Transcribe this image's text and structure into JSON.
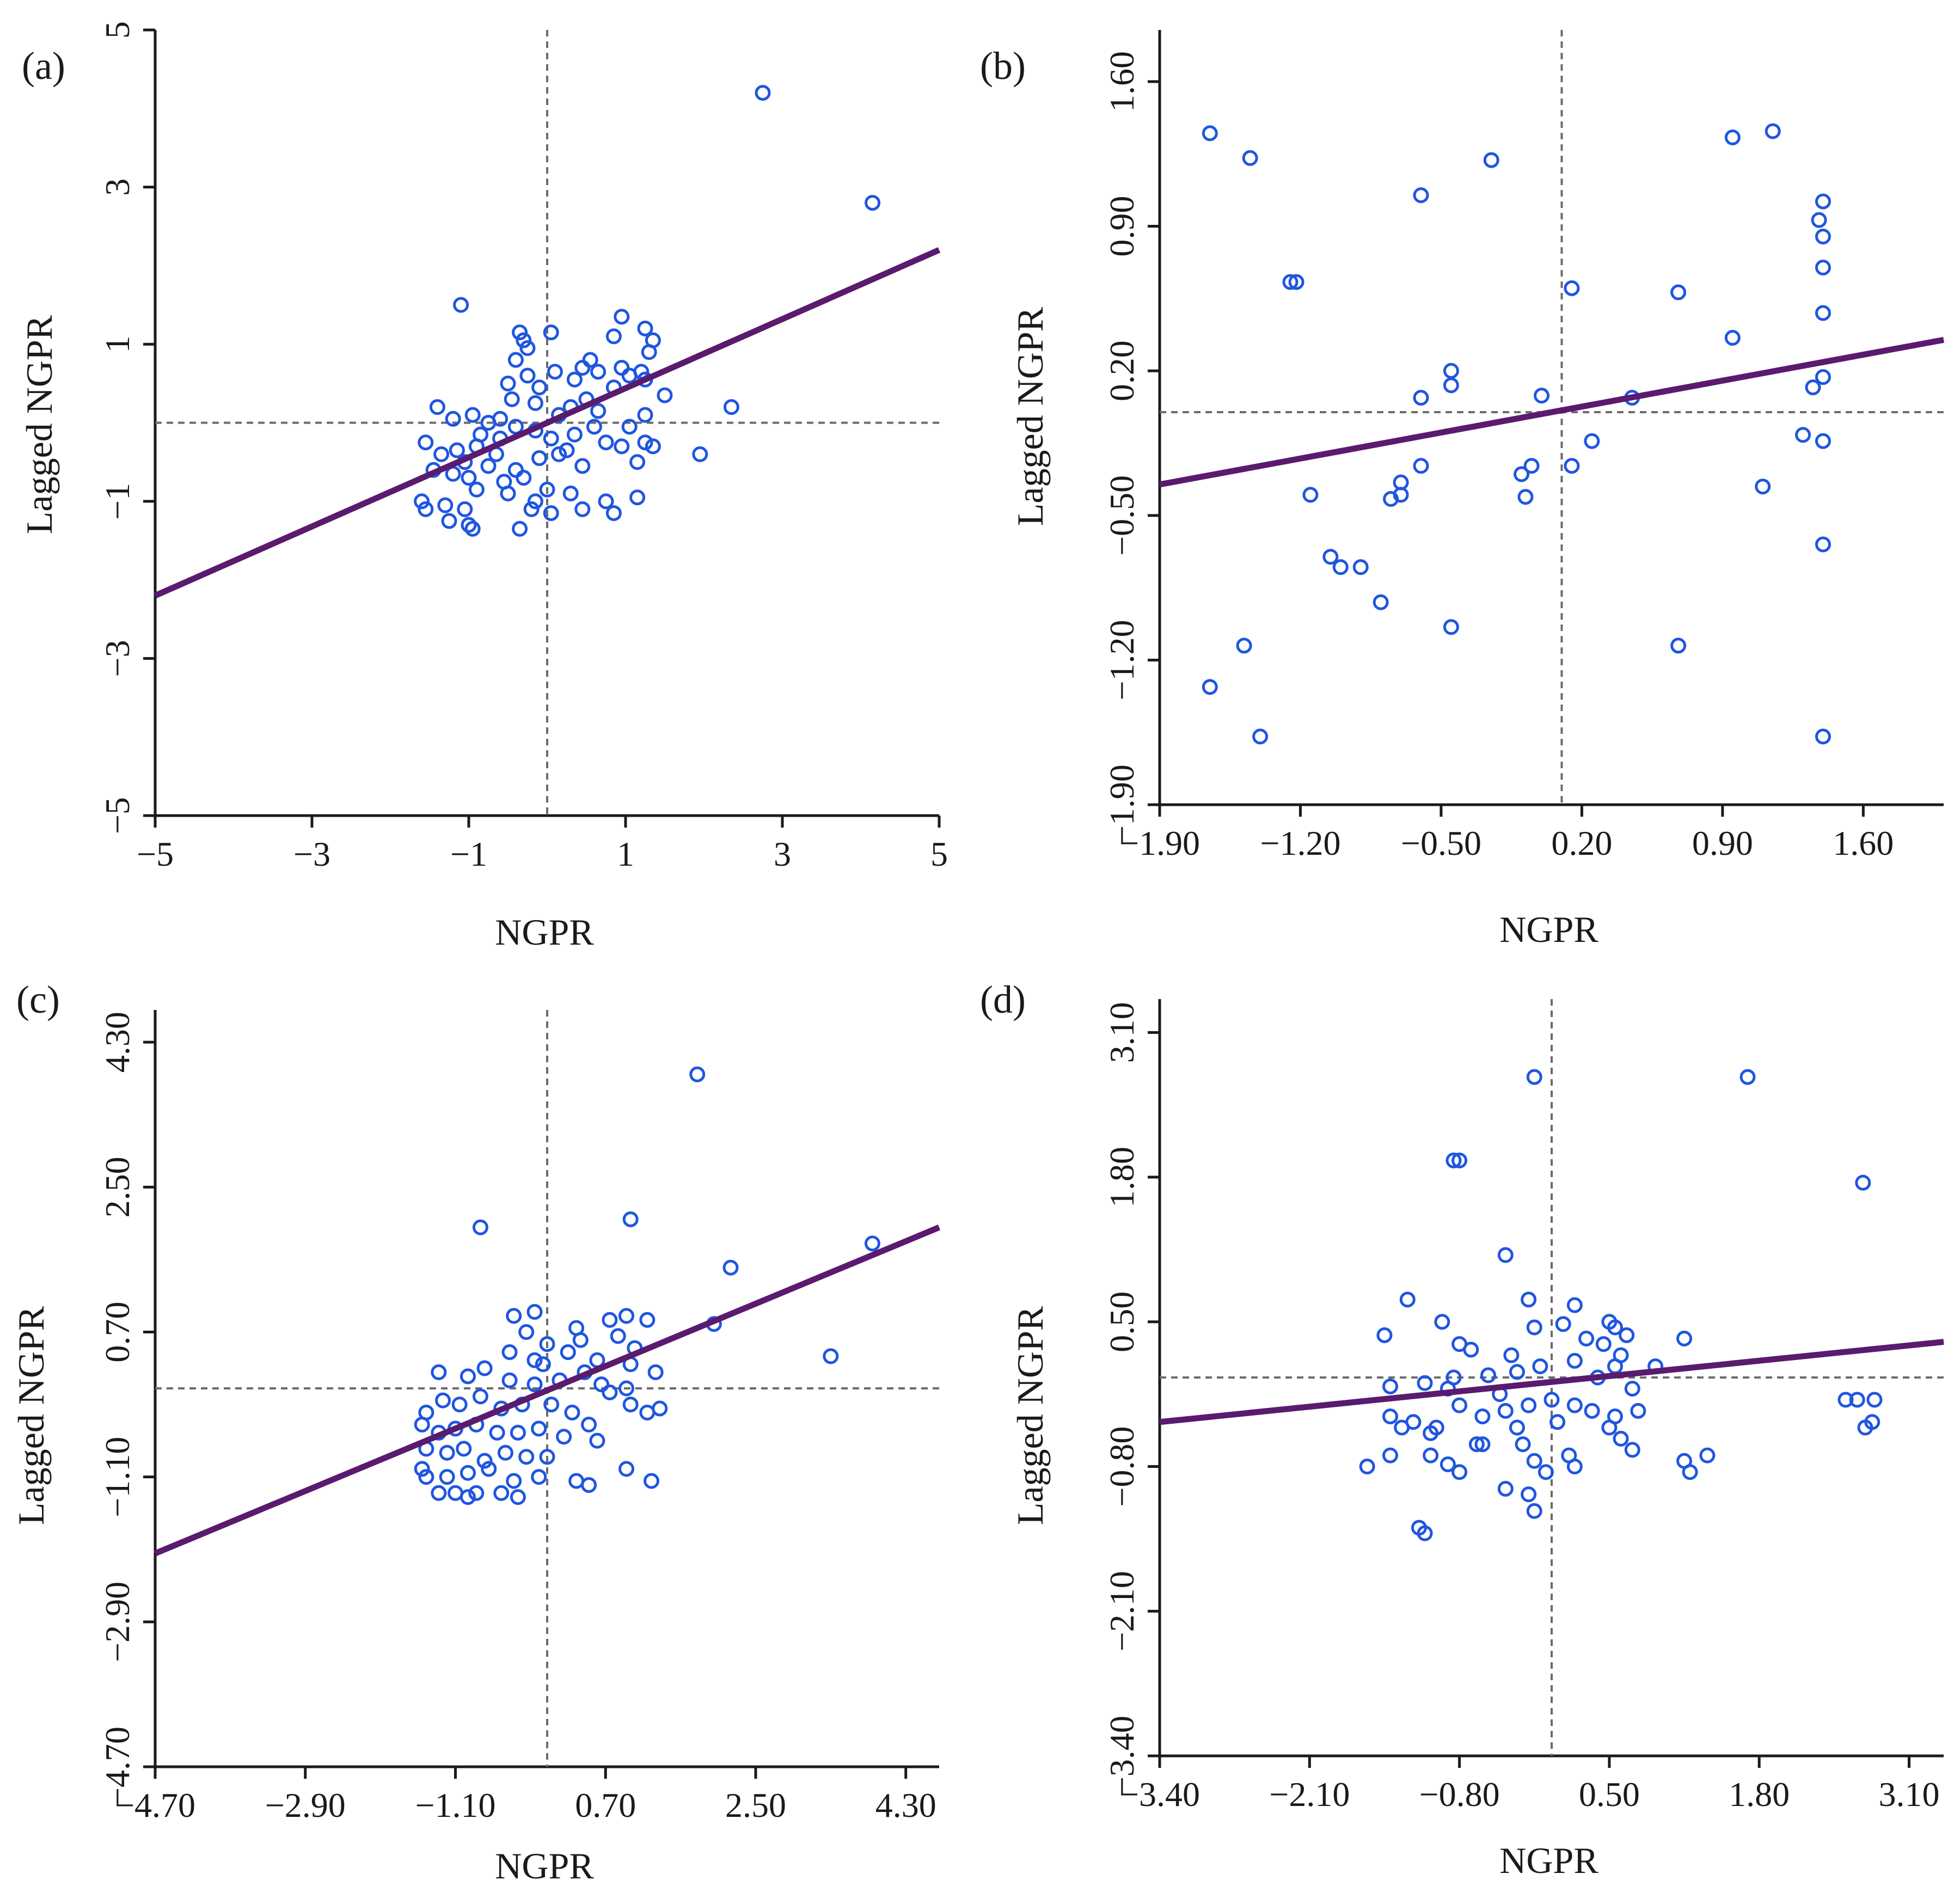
{
  "figure": {
    "panels": [
      {
        "label": "(a)",
        "xlabel": "NGPR",
        "ylabel": "Lagged NGPR"
      },
      {
        "label": "(b)",
        "xlabel": "NGPR",
        "ylabel": "Lagged NGPR"
      },
      {
        "label": "(c)",
        "xlabel": "NGPR",
        "ylabel": "Lagged NGPR"
      },
      {
        "label": "(d)",
        "xlabel": "NGPR",
        "ylabel": "Lagged NGPR"
      }
    ]
  },
  "colors": {
    "points": "#1f56e0",
    "fit_line": "#5a1a6e",
    "reference": "#6b6b6b",
    "axis": "#1a1a1a"
  },
  "chart_data": [
    {
      "type": "scatter",
      "title": "(a)",
      "xlabel": "NGPR",
      "ylabel": "Lagged NGPR",
      "xlim": [
        -5,
        5
      ],
      "ylim": [
        -5,
        5
      ],
      "xticks": [
        -5,
        -3,
        -1,
        1,
        3,
        5
      ],
      "xtick_labels": [
        "−5",
        "−3",
        "−1",
        "1",
        "3",
        "5"
      ],
      "yticks": [
        -5,
        -3,
        -1,
        1,
        3,
        5
      ],
      "ytick_labels": [
        "−5",
        "−3",
        "−1",
        "1",
        "3",
        "5"
      ],
      "reference_lines": {
        "x": 0,
        "y": 0
      },
      "fit_line": {
        "x": [
          -5,
          5
        ],
        "y": [
          -2.2,
          2.2
        ]
      },
      "points": [
        [
          2.75,
          4.2
        ],
        [
          4.15,
          2.8
        ],
        [
          -1.1,
          1.5
        ],
        [
          2.35,
          0.2
        ],
        [
          1.95,
          -0.4
        ],
        [
          -0.35,
          1.15
        ],
        [
          -0.3,
          1.05
        ],
        [
          -0.25,
          0.95
        ],
        [
          0.05,
          1.15
        ],
        [
          -0.4,
          0.8
        ],
        [
          0.95,
          1.35
        ],
        [
          1.25,
          1.2
        ],
        [
          1.35,
          1.05
        ],
        [
          0.85,
          1.1
        ],
        [
          1.3,
          0.9
        ],
        [
          0.55,
          0.8
        ],
        [
          0.45,
          0.7
        ],
        [
          0.65,
          0.65
        ],
        [
          0.95,
          0.7
        ],
        [
          1.2,
          0.65
        ],
        [
          -0.25,
          0.6
        ],
        [
          -0.5,
          0.5
        ],
        [
          -0.1,
          0.45
        ],
        [
          0.1,
          0.65
        ],
        [
          0.35,
          0.55
        ],
        [
          1.05,
          0.6
        ],
        [
          1.25,
          0.55
        ],
        [
          1.5,
          0.35
        ],
        [
          0.85,
          0.45
        ],
        [
          0.5,
          0.3
        ],
        [
          -0.45,
          0.3
        ],
        [
          -0.15,
          0.25
        ],
        [
          0.15,
          0.1
        ],
        [
          0.3,
          0.2
        ],
        [
          0.65,
          0.15
        ],
        [
          1.25,
          0.1
        ],
        [
          1.05,
          -0.05
        ],
        [
          -1.4,
          0.2
        ],
        [
          -1.2,
          0.05
        ],
        [
          -0.95,
          0.1
        ],
        [
          -0.75,
          0.0
        ],
        [
          -0.6,
          0.05
        ],
        [
          -0.4,
          -0.05
        ],
        [
          -0.15,
          -0.1
        ],
        [
          0.05,
          -0.2
        ],
        [
          0.35,
          -0.15
        ],
        [
          0.75,
          -0.25
        ],
        [
          0.95,
          -0.3
        ],
        [
          1.25,
          -0.25
        ],
        [
          1.35,
          -0.3
        ],
        [
          -1.55,
          -0.25
        ],
        [
          -1.35,
          -0.4
        ],
        [
          -1.15,
          -0.35
        ],
        [
          -0.9,
          -0.3
        ],
        [
          -0.65,
          -0.4
        ],
        [
          -0.4,
          -0.6
        ],
        [
          -0.1,
          -0.45
        ],
        [
          0.15,
          -0.4
        ],
        [
          0.45,
          -0.55
        ],
        [
          1.15,
          -0.5
        ],
        [
          -1.45,
          -0.6
        ],
        [
          -1.2,
          -0.65
        ],
        [
          -1.0,
          -0.7
        ],
        [
          -0.75,
          -0.55
        ],
        [
          -0.55,
          -0.75
        ],
        [
          -0.3,
          -0.7
        ],
        [
          0.0,
          -0.85
        ],
        [
          0.3,
          -0.9
        ],
        [
          0.75,
          -1.0
        ],
        [
          1.15,
          -0.95
        ],
        [
          -1.6,
          -1.0
        ],
        [
          -1.3,
          -1.05
        ],
        [
          -1.05,
          -1.1
        ],
        [
          -0.9,
          -0.85
        ],
        [
          -0.5,
          -0.9
        ],
        [
          -0.15,
          -1.0
        ],
        [
          0.05,
          -1.15
        ],
        [
          0.45,
          -1.1
        ],
        [
          0.85,
          -1.15
        ],
        [
          -1.55,
          -1.1
        ],
        [
          -1.25,
          -1.25
        ],
        [
          -0.95,
          -1.35
        ],
        [
          -0.35,
          -1.35
        ],
        [
          -1.0,
          -1.3
        ],
        [
          -0.2,
          -1.1
        ],
        [
          0.25,
          -0.35
        ],
        [
          -0.6,
          -0.2
        ],
        [
          -0.85,
          -0.15
        ],
        [
          0.6,
          -0.05
        ],
        [
          -1.05,
          -0.5
        ]
      ]
    },
    {
      "type": "scatter",
      "title": "(b)",
      "xlabel": "NGPR",
      "ylabel": "Lagged NGPR",
      "xlim": [
        -1.9,
        2.0
      ],
      "ylim": [
        -1.9,
        1.85
      ],
      "xticks": [
        -1.9,
        -1.2,
        -0.5,
        0.2,
        0.9,
        1.6
      ],
      "xtick_labels": [
        "−1.90",
        "−1.20",
        "−0.50",
        "0.20",
        "0.90",
        "1.60"
      ],
      "yticks": [
        -1.9,
        -1.2,
        -0.5,
        0.2,
        0.9,
        1.6
      ],
      "ytick_labels": [
        "−1.90",
        "−1.20",
        "−0.50",
        "0.20",
        "0.90",
        "1.60"
      ],
      "reference_lines": {
        "x": 0.1,
        "y": 0.0
      },
      "fit_line": {
        "x": [
          -1.9,
          2.0
        ],
        "y": [
          -0.35,
          0.35
        ]
      },
      "points": [
        [
          -1.65,
          1.35
        ],
        [
          -1.45,
          1.23
        ],
        [
          -0.25,
          1.22
        ],
        [
          -0.6,
          1.05
        ],
        [
          0.95,
          1.33
        ],
        [
          1.15,
          1.36
        ],
        [
          1.4,
          1.02
        ],
        [
          1.38,
          0.93
        ],
        [
          1.4,
          0.85
        ],
        [
          1.4,
          0.7
        ],
        [
          -1.25,
          0.63
        ],
        [
          -1.22,
          0.63
        ],
        [
          0.15,
          0.6
        ],
        [
          0.68,
          0.58
        ],
        [
          1.4,
          0.48
        ],
        [
          0.95,
          0.36
        ],
        [
          -0.45,
          0.2
        ],
        [
          -0.45,
          0.13
        ],
        [
          -0.6,
          0.07
        ],
        [
          0.0,
          0.08
        ],
        [
          0.45,
          0.07
        ],
        [
          1.35,
          0.12
        ],
        [
          1.4,
          0.17
        ],
        [
          1.3,
          -0.11
        ],
        [
          1.4,
          -0.14
        ],
        [
          0.25,
          -0.14
        ],
        [
          0.15,
          -0.26
        ],
        [
          -0.6,
          -0.26
        ],
        [
          -0.1,
          -0.3
        ],
        [
          -0.05,
          -0.26
        ],
        [
          -0.7,
          -0.34
        ],
        [
          -0.7,
          -0.4
        ],
        [
          -0.75,
          -0.42
        ],
        [
          -1.15,
          -0.4
        ],
        [
          -0.08,
          -0.41
        ],
        [
          1.1,
          -0.36
        ],
        [
          1.4,
          -0.64
        ],
        [
          -1.05,
          -0.7
        ],
        [
          -1.0,
          -0.75
        ],
        [
          -0.9,
          -0.75
        ],
        [
          -0.8,
          -0.92
        ],
        [
          -0.45,
          -1.04
        ],
        [
          -1.48,
          -1.13
        ],
        [
          0.68,
          -1.13
        ],
        [
          -1.65,
          -1.33
        ],
        [
          -1.4,
          -1.57
        ],
        [
          1.4,
          -1.57
        ]
      ]
    },
    {
      "type": "scatter",
      "title": "(c)",
      "xlabel": "NGPR",
      "ylabel": "Lagged NGPR",
      "xlim": [
        -4.7,
        4.7
      ],
      "ylim": [
        -4.7,
        4.7
      ],
      "xticks": [
        -4.7,
        -2.9,
        -1.1,
        0.7,
        2.5,
        4.3
      ],
      "xtick_labels": [
        "−4.70",
        "−2.90",
        "−1.10",
        "0.70",
        "2.50",
        "4.30"
      ],
      "yticks": [
        -4.7,
        -2.9,
        -1.1,
        0.7,
        2.5,
        4.3
      ],
      "ytick_labels": [
        "−4.70",
        "−2.90",
        "−1.10",
        "0.70",
        "2.50",
        "4.30"
      ],
      "reference_lines": {
        "x": 0,
        "y": 0
      },
      "fit_line": {
        "x": [
          -4.7,
          4.7
        ],
        "y": [
          -2.05,
          2.0
        ]
      },
      "points": [
        [
          1.8,
          3.9
        ],
        [
          -0.8,
          2.0
        ],
        [
          1.0,
          2.1
        ],
        [
          3.9,
          1.8
        ],
        [
          2.2,
          1.5
        ],
        [
          2.0,
          0.8
        ],
        [
          3.4,
          0.4
        ],
        [
          -0.4,
          0.9
        ],
        [
          -0.15,
          0.95
        ],
        [
          0.35,
          0.75
        ],
        [
          0.75,
          0.85
        ],
        [
          0.95,
          0.9
        ],
        [
          1.2,
          0.85
        ],
        [
          -0.25,
          0.7
        ],
        [
          0.0,
          0.55
        ],
        [
          0.4,
          0.6
        ],
        [
          0.85,
          0.65
        ],
        [
          1.05,
          0.5
        ],
        [
          -0.45,
          0.45
        ],
        [
          -0.15,
          0.35
        ],
        [
          0.25,
          0.45
        ],
        [
          0.6,
          0.35
        ],
        [
          1.0,
          0.3
        ],
        [
          1.3,
          0.2
        ],
        [
          -1.3,
          0.2
        ],
        [
          -0.95,
          0.15
        ],
        [
          -0.75,
          0.25
        ],
        [
          -0.45,
          0.1
        ],
        [
          -0.15,
          0.05
        ],
        [
          0.15,
          0.1
        ],
        [
          0.65,
          0.05
        ],
        [
          0.95,
          0.0
        ],
        [
          1.35,
          -0.25
        ],
        [
          -1.45,
          -0.3
        ],
        [
          -1.25,
          -0.15
        ],
        [
          -1.05,
          -0.2
        ],
        [
          -0.8,
          -0.1
        ],
        [
          -0.55,
          -0.25
        ],
        [
          -0.3,
          -0.2
        ],
        [
          0.05,
          -0.2
        ],
        [
          0.3,
          -0.3
        ],
        [
          1.0,
          -0.2
        ],
        [
          1.2,
          -0.3
        ],
        [
          -1.5,
          -0.45
        ],
        [
          -1.3,
          -0.55
        ],
        [
          -1.1,
          -0.5
        ],
        [
          -0.85,
          -0.45
        ],
        [
          -0.6,
          -0.55
        ],
        [
          -0.35,
          -0.55
        ],
        [
          -0.1,
          -0.5
        ],
        [
          0.2,
          -0.6
        ],
        [
          0.5,
          -0.45
        ],
        [
          0.6,
          -0.65
        ],
        [
          -1.45,
          -0.75
        ],
        [
          -1.2,
          -0.8
        ],
        [
          -1.0,
          -0.75
        ],
        [
          -0.75,
          -0.9
        ],
        [
          -0.5,
          -0.8
        ],
        [
          -0.25,
          -0.85
        ],
        [
          0.0,
          -0.85
        ],
        [
          -1.5,
          -1.0
        ],
        [
          -1.2,
          -1.1
        ],
        [
          -0.95,
          -1.05
        ],
        [
          -0.7,
          -1.0
        ],
        [
          -0.4,
          -1.15
        ],
        [
          -0.1,
          -1.1
        ],
        [
          0.35,
          -1.15
        ],
        [
          0.5,
          -1.2
        ],
        [
          0.95,
          -1.0
        ],
        [
          1.25,
          -1.15
        ],
        [
          -1.1,
          -1.3
        ],
        [
          -0.85,
          -1.3
        ],
        [
          -0.35,
          -1.35
        ],
        [
          -1.3,
          -1.3
        ],
        [
          -0.95,
          -1.35
        ],
        [
          -0.55,
          -1.3
        ],
        [
          -1.45,
          -1.1
        ],
        [
          0.75,
          -0.05
        ],
        [
          -0.05,
          0.3
        ],
        [
          0.45,
          0.2
        ]
      ]
    },
    {
      "type": "scatter",
      "title": "(d)",
      "xlabel": "NGPR",
      "ylabel": "Lagged NGPR",
      "xlim": [
        -3.4,
        3.4
      ],
      "ylim": [
        -3.4,
        3.4
      ],
      "xticks": [
        -3.4,
        -2.1,
        -0.8,
        0.5,
        1.8,
        3.1
      ],
      "xtick_labels": [
        "−3.40",
        "−2.10",
        "−0.80",
        "0.50",
        "1.80",
        "3.10"
      ],
      "yticks": [
        -3.4,
        -2.1,
        -0.8,
        0.5,
        1.8,
        3.1
      ],
      "ytick_labels": [
        "−3.40",
        "−2.10",
        "−0.80",
        "0.50",
        "1.80",
        "3.10"
      ],
      "reference_lines": {
        "x": 0,
        "y": 0
      },
      "fit_line": {
        "x": [
          -3.4,
          3.4
        ],
        "y": [
          -0.4,
          0.32
        ]
      },
      "points": [
        [
          -0.15,
          2.7
        ],
        [
          1.7,
          2.7
        ],
        [
          -0.85,
          1.95
        ],
        [
          -0.8,
          1.95
        ],
        [
          2.7,
          1.75
        ],
        [
          -0.4,
          1.1
        ],
        [
          -1.25,
          0.7
        ],
        [
          -0.2,
          0.7
        ],
        [
          0.2,
          0.65
        ],
        [
          -0.95,
          0.5
        ],
        [
          -0.15,
          0.45
        ],
        [
          0.1,
          0.48
        ],
        [
          0.5,
          0.5
        ],
        [
          0.55,
          0.45
        ],
        [
          0.65,
          0.38
        ],
        [
          1.15,
          0.35
        ],
        [
          -1.45,
          0.38
        ],
        [
          -0.8,
          0.3
        ],
        [
          -0.7,
          0.25
        ],
        [
          -0.35,
          0.2
        ],
        [
          0.3,
          0.35
        ],
        [
          0.45,
          0.3
        ],
        [
          0.6,
          0.2
        ],
        [
          0.9,
          0.1
        ],
        [
          -1.4,
          -0.08
        ],
        [
          -1.1,
          -0.05
        ],
        [
          -0.85,
          0.0
        ],
        [
          -0.55,
          0.02
        ],
        [
          -0.3,
          0.05
        ],
        [
          -0.1,
          0.1
        ],
        [
          0.2,
          0.15
        ],
        [
          0.55,
          0.1
        ],
        [
          0.7,
          -0.1
        ],
        [
          -1.4,
          -0.35
        ],
        [
          -1.2,
          -0.4
        ],
        [
          -1.0,
          -0.45
        ],
        [
          -0.8,
          -0.25
        ],
        [
          -0.6,
          -0.35
        ],
        [
          -0.4,
          -0.3
        ],
        [
          -0.2,
          -0.25
        ],
        [
          0.0,
          -0.2
        ],
        [
          0.2,
          -0.25
        ],
        [
          0.35,
          -0.3
        ],
        [
          0.55,
          -0.35
        ],
        [
          -1.3,
          -0.45
        ],
        [
          -1.05,
          -0.5
        ],
        [
          -0.65,
          -0.6
        ],
        [
          -0.3,
          -0.45
        ],
        [
          0.05,
          -0.4
        ],
        [
          0.5,
          -0.45
        ],
        [
          0.6,
          -0.55
        ],
        [
          0.7,
          -0.65
        ],
        [
          -1.6,
          -0.8
        ],
        [
          -1.4,
          -0.7
        ],
        [
          -1.05,
          -0.7
        ],
        [
          -0.9,
          -0.78
        ],
        [
          -0.8,
          -0.85
        ],
        [
          -0.6,
          -0.6
        ],
        [
          -0.25,
          -0.6
        ],
        [
          -0.15,
          -0.75
        ],
        [
          -0.05,
          -0.85
        ],
        [
          0.15,
          -0.7
        ],
        [
          0.2,
          -0.8
        ],
        [
          1.15,
          -0.75
        ],
        [
          1.2,
          -0.85
        ],
        [
          1.35,
          -0.7
        ],
        [
          -0.4,
          -1.0
        ],
        [
          -0.2,
          -1.05
        ],
        [
          -0.15,
          -1.2
        ],
        [
          -1.15,
          -1.35
        ],
        [
          -1.1,
          -1.4
        ],
        [
          2.55,
          -0.2
        ],
        [
          2.65,
          -0.2
        ],
        [
          2.8,
          -0.2
        ],
        [
          2.78,
          -0.4
        ],
        [
          2.72,
          -0.45
        ],
        [
          0.75,
          -0.3
        ],
        [
          -0.45,
          -0.15
        ],
        [
          0.4,
          0.0
        ],
        [
          -0.9,
          -0.1
        ]
      ]
    }
  ]
}
